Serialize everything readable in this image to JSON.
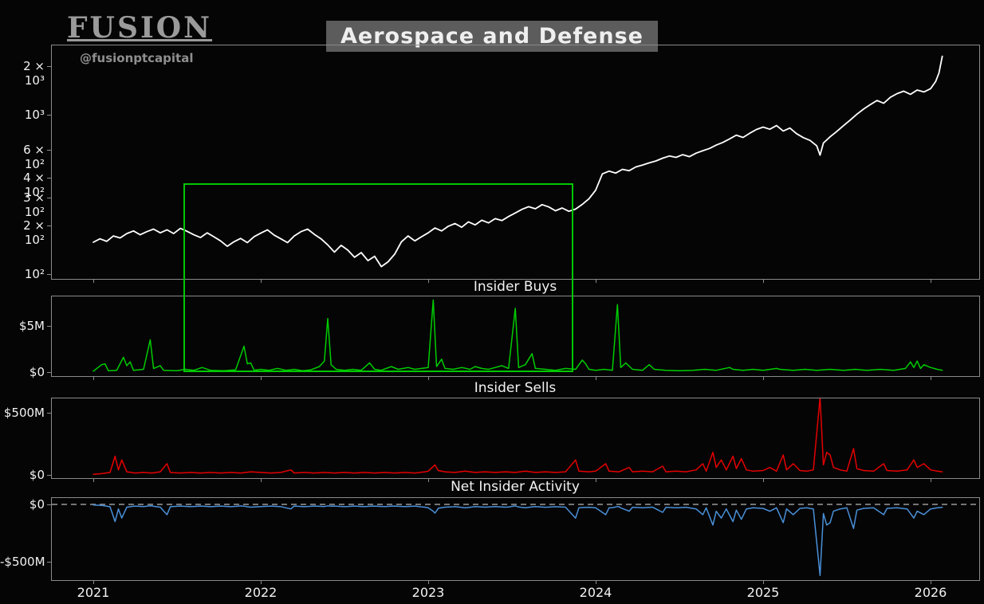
{
  "branding": {
    "logo": "FUSION",
    "handle": "@fusionptcapital"
  },
  "title": "Aerospace and Defense",
  "x_axis": {
    "ticks": [
      "2021",
      "2022",
      "2023",
      "2024",
      "2025",
      "2026"
    ],
    "range": [
      2020.75,
      2026.29
    ]
  },
  "annotation_box": {
    "color": "#00c800",
    "x_start": 2021.54,
    "x_end": 2023.87,
    "top_value": 370
  },
  "chart_data": [
    {
      "type": "line",
      "name": "price_index",
      "title": "",
      "color": "#ffffff",
      "yscale": "log",
      "xlabel": "",
      "ylabel": "",
      "y_ticks": [
        {
          "value": 100,
          "label": "10²"
        },
        {
          "value": 200,
          "label": "2 × 10²"
        },
        {
          "value": 300,
          "label": "3 × 10²"
        },
        {
          "value": 400,
          "label": "4 × 10²"
        },
        {
          "value": 600,
          "label": "6 × 10²"
        },
        {
          "value": 1000,
          "label": "10³"
        },
        {
          "value": 2000,
          "label": "2 × 10³"
        }
      ],
      "points": [
        2021.0,
        158,
        2021.04,
        166,
        2021.08,
        160,
        2021.12,
        173,
        2021.16,
        168,
        2021.2,
        179,
        2021.24,
        186,
        2021.28,
        176,
        2021.32,
        184,
        2021.36,
        191,
        2021.4,
        181,
        2021.44,
        189,
        2021.48,
        179,
        2021.52,
        193,
        2021.56,
        185,
        2021.6,
        176,
        2021.64,
        169,
        2021.68,
        181,
        2021.72,
        171,
        2021.76,
        161,
        2021.8,
        149,
        2021.84,
        159,
        2021.88,
        167,
        2021.92,
        157,
        2021.96,
        171,
        2022.0,
        180,
        2022.04,
        189,
        2022.08,
        175,
        2022.12,
        166,
        2022.16,
        157,
        2022.2,
        173,
        2022.24,
        184,
        2022.28,
        191,
        2022.32,
        177,
        2022.36,
        166,
        2022.4,
        152,
        2022.44,
        137,
        2022.48,
        151,
        2022.52,
        141,
        2022.56,
        127,
        2022.6,
        136,
        2022.64,
        121,
        2022.68,
        129,
        2022.72,
        111,
        2022.76,
        119,
        2022.8,
        133,
        2022.84,
        159,
        2022.88,
        173,
        2022.92,
        161,
        2022.96,
        171,
        2023.0,
        181,
        2023.04,
        194,
        2023.08,
        186,
        2023.12,
        199,
        2023.16,
        207,
        2023.2,
        196,
        2023.24,
        212,
        2023.28,
        203,
        2023.32,
        217,
        2023.36,
        209,
        2023.4,
        222,
        2023.44,
        216,
        2023.48,
        229,
        2023.52,
        241,
        2023.56,
        254,
        2023.6,
        264,
        2023.64,
        256,
        2023.68,
        272,
        2023.72,
        263,
        2023.76,
        249,
        2023.8,
        259,
        2023.84,
        247,
        2023.88,
        255,
        2023.92,
        273,
        2023.96,
        296,
        2024.0,
        335,
        2024.04,
        424,
        2024.08,
        441,
        2024.12,
        429,
        2024.16,
        453,
        2024.2,
        444,
        2024.24,
        469,
        2024.28,
        482,
        2024.32,
        497,
        2024.36,
        511,
        2024.4,
        532,
        2024.44,
        549,
        2024.48,
        538,
        2024.52,
        560,
        2024.56,
        544,
        2024.6,
        572,
        2024.64,
        593,
        2024.68,
        612,
        2024.72,
        643,
        2024.76,
        668,
        2024.8,
        703,
        2024.84,
        742,
        2024.88,
        718,
        2024.92,
        763,
        2024.96,
        805,
        2025.0,
        834,
        2025.04,
        808,
        2025.08,
        852,
        2025.12,
        788,
        2025.16,
        822,
        2025.2,
        758,
        2025.24,
        716,
        2025.28,
        688,
        2025.32,
        637,
        2025.34,
        556,
        2025.36,
        662,
        2025.4,
        724,
        2025.44,
        783,
        2025.48,
        851,
        2025.52,
        923,
        2025.56,
        1004,
        2025.6,
        1082,
        2025.64,
        1153,
        2025.68,
        1224,
        2025.72,
        1176,
        2025.76,
        1283,
        2025.8,
        1352,
        2025.84,
        1401,
        2025.88,
        1338,
        2025.92,
        1424,
        2025.96,
        1385,
        2026.0,
        1452,
        2026.03,
        1608,
        2026.05,
        1820,
        2026.07,
        2320
      ]
    },
    {
      "type": "line",
      "name": "insider_buys",
      "title": "Insider Buys",
      "color": "#00cc00",
      "unit": "$M",
      "y_ticks": [
        {
          "value": 5,
          "label": "$5M"
        },
        {
          "value": 0,
          "label": "$0"
        }
      ],
      "points": [
        2021.0,
        0.1,
        2021.05,
        0.8,
        2021.07,
        0.9,
        2021.09,
        0.15,
        2021.14,
        0.2,
        2021.18,
        1.6,
        2021.2,
        0.7,
        2021.22,
        1.1,
        2021.24,
        0.2,
        2021.3,
        0.3,
        2021.34,
        3.5,
        2021.36,
        0.4,
        2021.4,
        0.7,
        2021.42,
        0.2,
        2021.5,
        0.15,
        2021.55,
        0.3,
        2021.6,
        0.2,
        2021.65,
        0.5,
        2021.7,
        0.2,
        2021.78,
        0.15,
        2021.85,
        0.25,
        2021.9,
        2.8,
        2021.92,
        0.9,
        2021.94,
        1.0,
        2021.96,
        0.2,
        2022.0,
        0.3,
        2022.05,
        0.2,
        2022.1,
        0.4,
        2022.15,
        0.2,
        2022.2,
        0.3,
        2022.25,
        0.15,
        2022.3,
        0.25,
        2022.35,
        0.6,
        2022.38,
        1.2,
        2022.4,
        5.8,
        2022.42,
        0.8,
        2022.45,
        0.3,
        2022.5,
        0.2,
        2022.55,
        0.3,
        2022.6,
        0.2,
        2022.65,
        1.0,
        2022.68,
        0.3,
        2022.72,
        0.2,
        2022.78,
        0.6,
        2022.82,
        0.3,
        2022.88,
        0.5,
        2022.92,
        0.3,
        2022.96,
        0.4,
        2023.0,
        0.5,
        2023.03,
        7.8,
        2023.05,
        0.6,
        2023.08,
        1.4,
        2023.1,
        0.4,
        2023.15,
        0.3,
        2023.2,
        0.5,
        2023.25,
        0.3,
        2023.28,
        0.6,
        2023.32,
        0.4,
        2023.36,
        0.3,
        2023.4,
        0.5,
        2023.44,
        0.7,
        2023.48,
        0.4,
        2023.52,
        6.9,
        2023.54,
        0.5,
        2023.58,
        0.8,
        2023.62,
        2.0,
        2023.64,
        0.4,
        2023.7,
        0.3,
        2023.76,
        0.2,
        2023.82,
        0.4,
        2023.88,
        0.3,
        2023.92,
        1.3,
        2023.94,
        0.9,
        2023.96,
        0.3,
        2024.0,
        0.2,
        2024.05,
        0.3,
        2024.1,
        0.2,
        2024.13,
        7.3,
        2024.15,
        0.5,
        2024.18,
        1.0,
        2024.22,
        0.3,
        2024.28,
        0.2,
        2024.32,
        0.8,
        2024.35,
        0.3,
        2024.42,
        0.2,
        2024.5,
        0.15,
        2024.58,
        0.2,
        2024.65,
        0.3,
        2024.72,
        0.2,
        2024.8,
        0.5,
        2024.82,
        0.3,
        2024.88,
        0.2,
        2024.94,
        0.3,
        2025.0,
        0.2,
        2025.08,
        0.4,
        2025.1,
        0.3,
        2025.18,
        0.2,
        2025.25,
        0.3,
        2025.32,
        0.2,
        2025.4,
        0.3,
        2025.48,
        0.2,
        2025.55,
        0.3,
        2025.62,
        0.2,
        2025.7,
        0.3,
        2025.78,
        0.2,
        2025.85,
        0.4,
        2025.88,
        1.1,
        2025.9,
        0.5,
        2025.92,
        1.2,
        2025.94,
        0.4,
        2025.96,
        0.8,
        2026.0,
        0.5,
        2026.04,
        0.3,
        2026.07,
        0.2
      ]
    },
    {
      "type": "line",
      "name": "insider_sells",
      "title": "Insider Sells",
      "color": "#e50000",
      "unit": "$M",
      "y_ticks": [
        {
          "value": 500,
          "label": "$500M"
        },
        {
          "value": 0,
          "label": "$0"
        }
      ],
      "points": [
        2021.0,
        5,
        2021.05,
        10,
        2021.1,
        20,
        2021.13,
        150,
        2021.15,
        40,
        2021.17,
        120,
        2021.2,
        25,
        2021.25,
        15,
        2021.3,
        20,
        2021.35,
        15,
        2021.4,
        25,
        2021.44,
        90,
        2021.46,
        20,
        2021.52,
        15,
        2021.58,
        20,
        2021.64,
        15,
        2021.7,
        20,
        2021.76,
        15,
        2021.82,
        20,
        2021.88,
        15,
        2021.94,
        25,
        2022.0,
        20,
        2022.06,
        15,
        2022.12,
        20,
        2022.18,
        40,
        2022.2,
        15,
        2022.26,
        20,
        2022.32,
        15,
        2022.38,
        20,
        2022.44,
        15,
        2022.5,
        20,
        2022.56,
        15,
        2022.62,
        20,
        2022.68,
        15,
        2022.74,
        20,
        2022.8,
        15,
        2022.86,
        20,
        2022.92,
        15,
        2022.98,
        25,
        2023.0,
        30,
        2023.04,
        80,
        2023.06,
        35,
        2023.1,
        25,
        2023.16,
        20,
        2023.22,
        30,
        2023.28,
        20,
        2023.34,
        25,
        2023.4,
        20,
        2023.46,
        25,
        2023.52,
        20,
        2023.58,
        30,
        2023.64,
        20,
        2023.7,
        25,
        2023.76,
        20,
        2023.82,
        25,
        2023.88,
        120,
        2023.9,
        30,
        2023.96,
        25,
        2024.0,
        30,
        2024.06,
        90,
        2024.08,
        30,
        2024.14,
        25,
        2024.2,
        60,
        2024.22,
        25,
        2024.28,
        30,
        2024.34,
        25,
        2024.4,
        70,
        2024.42,
        25,
        2024.48,
        30,
        2024.54,
        25,
        2024.6,
        40,
        2024.64,
        90,
        2024.66,
        30,
        2024.7,
        180,
        2024.72,
        60,
        2024.75,
        120,
        2024.78,
        40,
        2024.82,
        150,
        2024.84,
        50,
        2024.87,
        130,
        2024.9,
        40,
        2024.94,
        30,
        2025.0,
        35,
        2025.04,
        60,
        2025.08,
        30,
        2025.12,
        160,
        2025.14,
        40,
        2025.18,
        90,
        2025.22,
        35,
        2025.26,
        30,
        2025.3,
        40,
        2025.34,
        620,
        2025.36,
        80,
        2025.38,
        180,
        2025.4,
        160,
        2025.42,
        60,
        2025.46,
        40,
        2025.5,
        30,
        2025.54,
        210,
        2025.56,
        50,
        2025.6,
        35,
        2025.66,
        30,
        2025.72,
        90,
        2025.74,
        35,
        2025.8,
        30,
        2025.86,
        40,
        2025.9,
        120,
        2025.92,
        60,
        2025.96,
        90,
        2026.0,
        40,
        2026.04,
        30,
        2026.07,
        25
      ]
    },
    {
      "type": "line",
      "name": "net_insider_activity",
      "title": "Net Insider Activity",
      "color": "#4a90d9",
      "unit": "$M",
      "zero_line": true,
      "derived_from": "buys_minus_sells",
      "y_ticks": [
        {
          "value": 0,
          "label": "$0"
        },
        {
          "value": -500,
          "label": "-$500M"
        }
      ]
    }
  ]
}
